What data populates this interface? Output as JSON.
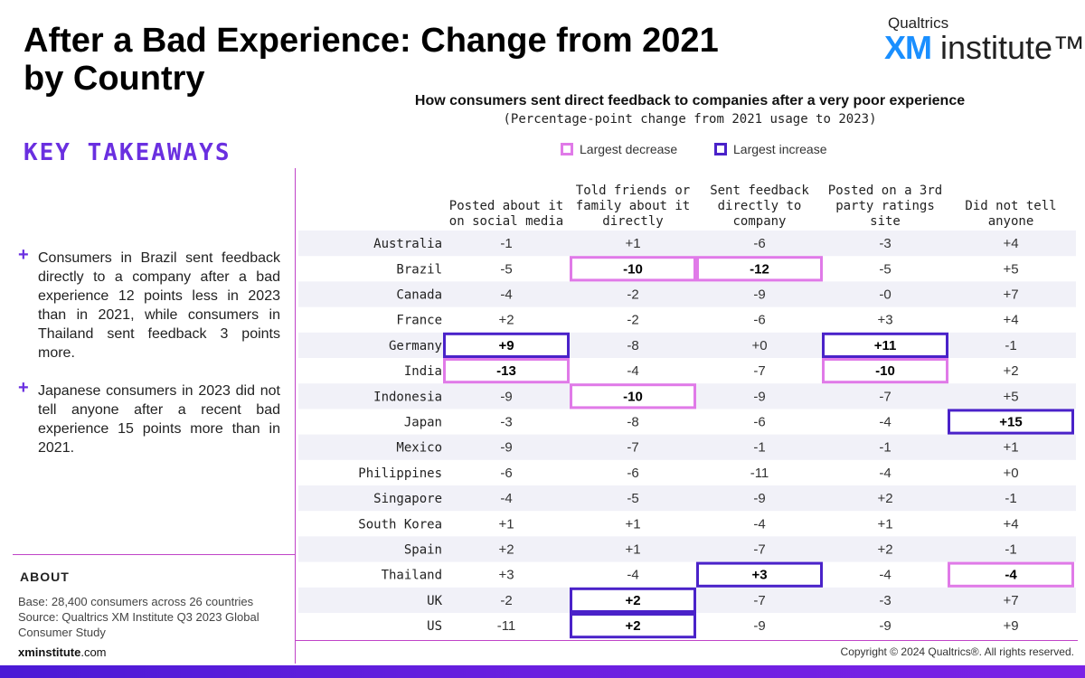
{
  "page": {
    "title": "After a Bad Experience: Change from 2021 by Country",
    "logo_top": "Qualtrics",
    "logo_xm": "XM",
    "logo_institute": "institute™",
    "key_takeaways_title": "KEY TAKEAWAYS",
    "takeaways": [
      "Consumers in Brazil sent feedback directly to a company after a bad experience 12 points less in 2023 than in 2021, while consumers in Thailand sent feedback 3 points more.",
      "Japanese consumers in 2023 did not tell anyone after a recent bad experience 15 points more than in 2021."
    ],
    "about_title": "ABOUT",
    "about_base": "Base: 28,400 consumers across 26 countries",
    "about_source": "Source: Qualtrics XM Institute Q3 2023 Global Consumer Study",
    "site_bold": "xminstitute",
    "site_rest": ".com",
    "copyright": "Copyright © 2024 Qualtrics®. All rights reserved."
  },
  "chart_data": {
    "type": "table",
    "title": "How consumers sent direct feedback to companies after a very poor experience",
    "subtitle": "(Percentage-point change from 2021 usage to 2023)",
    "legend": {
      "decrease": "Largest decrease",
      "increase": "Largest increase",
      "decrease_color": "#e07ae8",
      "increase_color": "#4a22c9"
    },
    "columns": [
      "Posted about it on social media",
      "Told friends or family about it directly",
      "Sent feedback directly to company",
      "Posted on a 3rd party ratings site",
      "Did not tell anyone"
    ],
    "column_lines": [
      [
        "Posted about it",
        "on social media"
      ],
      [
        "Told friends or",
        "family about it",
        "directly"
      ],
      [
        "Sent feedback",
        "directly to",
        "company"
      ],
      [
        "Posted on a 3rd",
        "party ratings",
        "site"
      ],
      [
        "Did not tell",
        "anyone"
      ]
    ],
    "rows": [
      {
        "country": "Australia",
        "values": [
          "-1",
          "+1",
          "-6",
          "-3",
          "+4"
        ],
        "highlight": [
          null,
          null,
          null,
          null,
          null
        ]
      },
      {
        "country": "Brazil",
        "values": [
          "-5",
          "-10",
          "-12",
          "-5",
          "+5"
        ],
        "highlight": [
          null,
          "decrease",
          "decrease",
          null,
          null
        ]
      },
      {
        "country": "Canada",
        "values": [
          "-4",
          "-2",
          "-9",
          "-0",
          "+7"
        ],
        "highlight": [
          null,
          null,
          null,
          null,
          null
        ]
      },
      {
        "country": "France",
        "values": [
          "+2",
          "-2",
          "-6",
          "+3",
          "+4"
        ],
        "highlight": [
          null,
          null,
          null,
          null,
          null
        ]
      },
      {
        "country": "Germany",
        "values": [
          "+9",
          "-8",
          "+0",
          "+11",
          "-1"
        ],
        "highlight": [
          "increase",
          null,
          null,
          "increase",
          null
        ]
      },
      {
        "country": "India",
        "values": [
          "-13",
          "-4",
          "-7",
          "-10",
          "+2"
        ],
        "highlight": [
          "decrease",
          null,
          null,
          "decrease",
          null
        ]
      },
      {
        "country": "Indonesia",
        "values": [
          "-9",
          "-10",
          "-9",
          "-7",
          "+5"
        ],
        "highlight": [
          null,
          "decrease",
          null,
          null,
          null
        ]
      },
      {
        "country": "Japan",
        "values": [
          "-3",
          "-8",
          "-6",
          "-4",
          "+15"
        ],
        "highlight": [
          null,
          null,
          null,
          null,
          "increase"
        ]
      },
      {
        "country": "Mexico",
        "values": [
          "-9",
          "-7",
          "-1",
          "-1",
          "+1"
        ],
        "highlight": [
          null,
          null,
          null,
          null,
          null
        ]
      },
      {
        "country": "Philippines",
        "values": [
          "-6",
          "-6",
          "-11",
          "-4",
          "+0"
        ],
        "highlight": [
          null,
          null,
          null,
          null,
          null
        ]
      },
      {
        "country": "Singapore",
        "values": [
          "-4",
          "-5",
          "-9",
          "+2",
          "-1"
        ],
        "highlight": [
          null,
          null,
          null,
          null,
          null
        ]
      },
      {
        "country": "South Korea",
        "values": [
          "+1",
          "+1",
          "-4",
          "+1",
          "+4"
        ],
        "highlight": [
          null,
          null,
          null,
          null,
          null
        ]
      },
      {
        "country": "Spain",
        "values": [
          "+2",
          "+1",
          "-7",
          "+2",
          "-1"
        ],
        "highlight": [
          null,
          null,
          null,
          null,
          null
        ]
      },
      {
        "country": "Thailand",
        "values": [
          "+3",
          "-4",
          "+3",
          "-4",
          "-4"
        ],
        "highlight": [
          null,
          null,
          "increase",
          null,
          "decrease"
        ]
      },
      {
        "country": "UK",
        "values": [
          "-2",
          "+2",
          "-7",
          "-3",
          "+7"
        ],
        "highlight": [
          null,
          "increase",
          null,
          null,
          null
        ]
      },
      {
        "country": "US",
        "values": [
          "-11",
          "+2",
          "-9",
          "-9",
          "+9"
        ],
        "highlight": [
          null,
          "increase",
          null,
          null,
          null
        ]
      }
    ]
  }
}
